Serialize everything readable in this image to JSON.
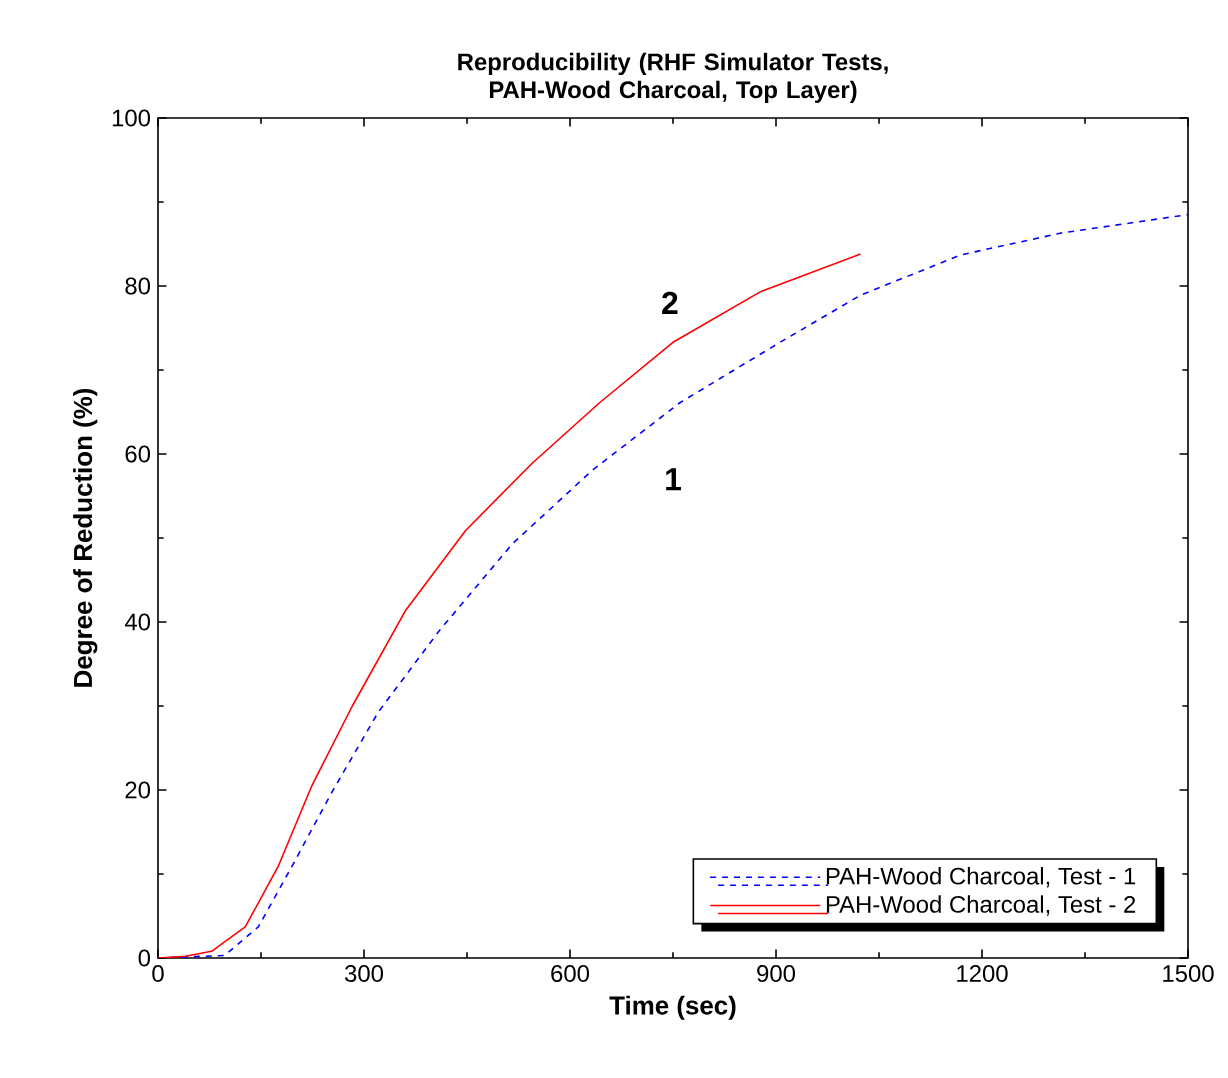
{
  "chart_data": {
    "type": "line",
    "title": "Reproducibility (RHF Simulator Tests, PAH-Wood Charcoal, Top Layer)",
    "xlabel": "Time (sec)",
    "ylabel": "Degree of Reduction (%)",
    "xlim": [
      0,
      1500
    ],
    "xticks": [
      0,
      300,
      600,
      900,
      1200,
      1500
    ],
    "ylim": [
      0,
      100
    ],
    "yticks": [
      0,
      20,
      40,
      60,
      80,
      100
    ],
    "grid": false,
    "legend": "bottom right",
    "marker": "none",
    "series": [
      {
        "name": "PAH-Wood Charcoal, Test - 1",
        "color": "#0000ff",
        "line_style": "dashed",
        "x": [
          0,
          97,
          146,
          195,
          253,
          321,
          409,
          516,
          633,
          760,
          906,
          1023,
          1169,
          1315,
          1500
        ],
        "values": [
          0,
          0.3,
          3.7,
          10.9,
          19.7,
          29.3,
          38.9,
          49.3,
          58.1,
          66.1,
          73.3,
          78.9,
          83.7,
          86.3,
          88.5
        ]
      },
      {
        "name": "PAH-Wood Charcoal, Test - 2",
        "color": "#ff0000",
        "line_style": "solid",
        "x": [
          0,
          40,
          78,
          127,
          175,
          224,
          283,
          360,
          448,
          545,
          643,
          750,
          877,
          1023
        ],
        "values": [
          0,
          0.2,
          0.8,
          3.7,
          10.9,
          20.5,
          30,
          41.3,
          50.9,
          58.9,
          66.1,
          73.3,
          79.3,
          83.8
        ]
      }
    ],
    "annotations": [
      "1",
      "2"
    ]
  }
}
